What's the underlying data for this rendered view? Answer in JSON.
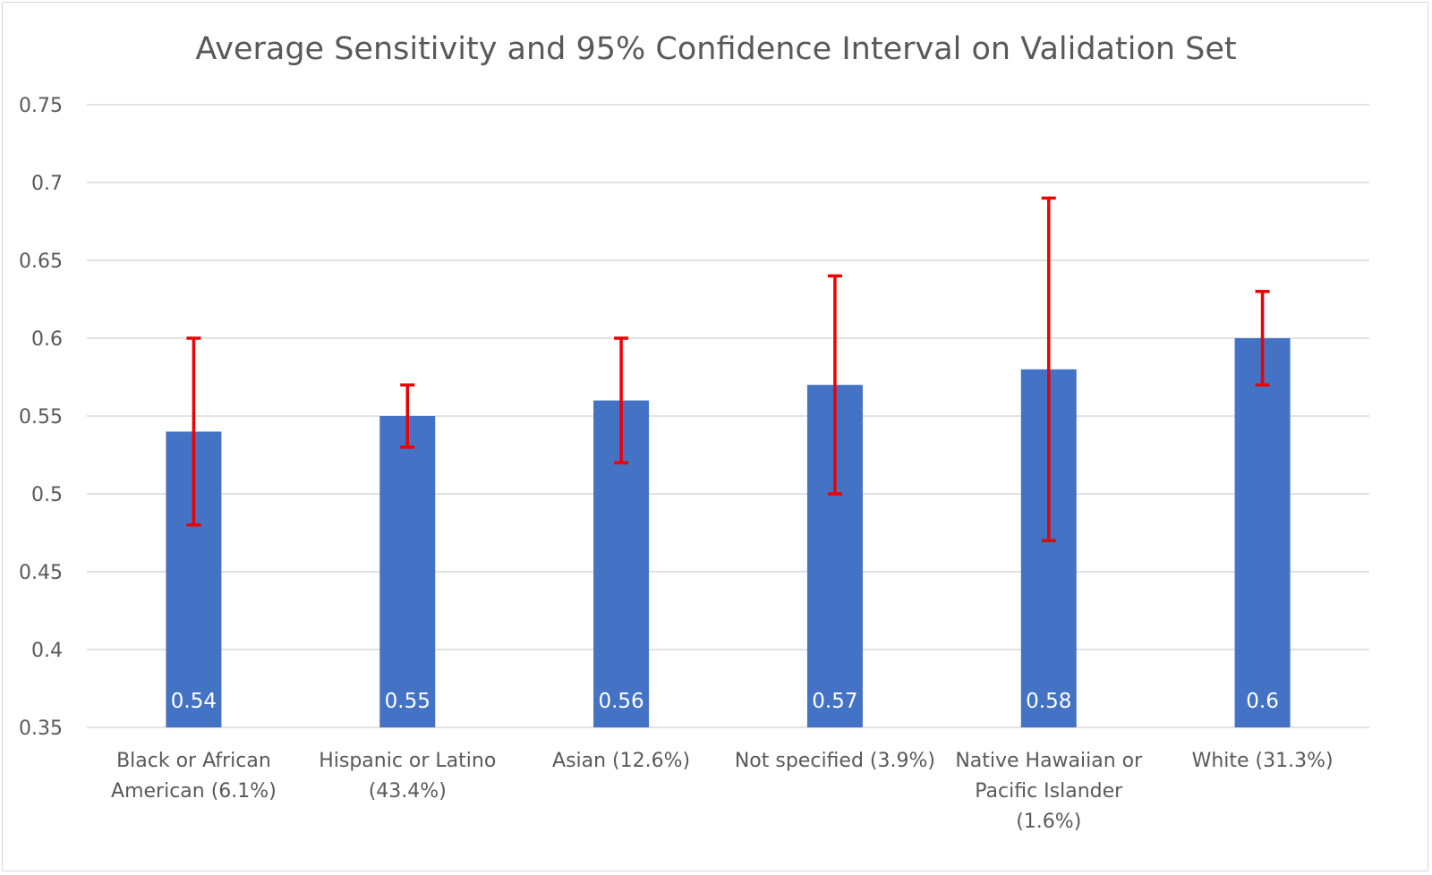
{
  "chart_data": {
    "type": "bar",
    "title": "Average Sensitivity and 95% Confidence Interval on Validation Set",
    "xlabel": "",
    "ylabel": "",
    "ylim": [
      0.35,
      0.75
    ],
    "yticks": [
      "0.35",
      "0.4",
      "0.45",
      "0.5",
      "0.55",
      "0.6",
      "0.65",
      "0.7",
      "0.75"
    ],
    "grid": true,
    "legend": "none",
    "bar_color": "#4472c4",
    "error_bar_color": "#ee0000",
    "categories": [
      [
        "Black or African",
        "American (6.1%)"
      ],
      [
        "Hispanic or Latino",
        "(43.4%)"
      ],
      [
        "Asian (12.6%)"
      ],
      [
        "Not specified (3.9%)"
      ],
      [
        "Native Hawaiian or",
        "Pacific Islander",
        "(1.6%)"
      ],
      [
        "White (31.3%)"
      ]
    ],
    "values": [
      0.54,
      0.55,
      0.56,
      0.57,
      0.58,
      0.6
    ],
    "data_labels": [
      "0.54",
      "0.55",
      "0.56",
      "0.57",
      "0.58",
      "0.6"
    ],
    "ci_lower": [
      0.48,
      0.53,
      0.52,
      0.5,
      0.47,
      0.57
    ],
    "ci_upper": [
      0.6,
      0.57,
      0.6,
      0.64,
      0.69,
      0.63
    ]
  }
}
